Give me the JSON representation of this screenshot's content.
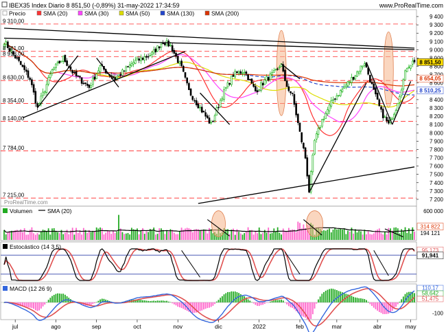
{
  "header": {
    "title": "IBEX35 Index Diario 8 851,50 (-0,89%) 31-may-2022 17:34:59",
    "site": "www.ProRealTime.com",
    "watermark": "ProRealTime.com"
  },
  "colors": {
    "sma20": "#ff3333",
    "sma30": "#ff44ff",
    "sma50": "#dddd00",
    "sma130": "#2244cc",
    "sma200": "#dd3300",
    "up": "#00aa00",
    "down": "#000000",
    "grid": "#ff0000",
    "trend": "#000000",
    "stoch_k": "#000000",
    "stoch_d": "#e05050",
    "macd": "#3366dd",
    "macd_signal": "#e05050",
    "hist_pos": "#22aa22",
    "hist_neg": "#ff66cc"
  },
  "chart_data": [
    {
      "type": "candlestick",
      "panel": "price",
      "legend": [
        {
          "label": "Precio",
          "color": "#ffffff"
        },
        {
          "label": "SMA (20)",
          "color": "#ff3333"
        },
        {
          "label": "SMA (30)",
          "color": "#ff44ff"
        },
        {
          "label": "SMA (50)",
          "color": "#dddd00"
        },
        {
          "label": "SMA (130)",
          "color": "#2244cc"
        },
        {
          "label": "SMA (200)",
          "color": "#dd3300"
        }
      ],
      "ylim": [
        7150,
        9450
      ],
      "y_ticks": [
        "9 400",
        "9 300",
        "9 200",
        "9 100",
        "9 000",
        "8 900",
        "8 800",
        "8 700",
        "8 600",
        "8 500",
        "8 400",
        "8 300",
        "8 200",
        "8 100",
        "8 000",
        "7 900",
        "7 800",
        "7 700",
        "7 600",
        "7 500",
        "7 400",
        "7 300",
        "7 200"
      ],
      "level_labels": [
        "9 310,00",
        "8 981,00",
        "8 918,00",
        "8 630,00",
        "8 354,00",
        "8 140,00",
        "7 784,00",
        "7 215,00"
      ],
      "level_values": [
        9310,
        8981,
        8918,
        8630,
        8354,
        8140,
        7784,
        7215
      ],
      "price_tags": [
        {
          "label": "8 851,50",
          "value": 8851.5,
          "bg": "#ffdd00"
        },
        {
          "label": "8 654,05",
          "value": 8654,
          "bg": "#ffffff",
          "fg": "#dd3300"
        },
        {
          "label": "8 510,25",
          "value": 8510,
          "bg": "#ffffff",
          "fg": "#2244cc"
        }
      ],
      "anchors": [
        [
          0,
          9100
        ],
        [
          8,
          8850
        ],
        [
          14,
          8650
        ],
        [
          18,
          8300
        ],
        [
          26,
          8750
        ],
        [
          32,
          8900
        ],
        [
          38,
          8700
        ],
        [
          46,
          8550
        ],
        [
          52,
          8800
        ],
        [
          60,
          8650
        ],
        [
          70,
          8850
        ],
        [
          80,
          8950
        ],
        [
          86,
          9100
        ],
        [
          90,
          9050
        ],
        [
          96,
          8780
        ],
        [
          100,
          8500
        ],
        [
          106,
          8300
        ],
        [
          112,
          8100
        ],
        [
          118,
          8450
        ],
        [
          124,
          8700
        ],
        [
          130,
          8750
        ],
        [
          136,
          8500
        ],
        [
          142,
          8650
        ],
        [
          148,
          8750
        ],
        [
          150,
          8850
        ],
        [
          152,
          8600
        ],
        [
          156,
          8450
        ],
        [
          160,
          8000
        ],
        [
          163,
          7700
        ],
        [
          165,
          7300
        ],
        [
          168,
          7900
        ],
        [
          172,
          8150
        ],
        [
          178,
          8400
        ],
        [
          184,
          8550
        ],
        [
          190,
          8700
        ],
        [
          195,
          8850
        ],
        [
          200,
          8500
        ],
        [
          204,
          8250
        ],
        [
          208,
          8100
        ],
        [
          212,
          8300
        ],
        [
          218,
          8800
        ],
        [
          221,
          8851
        ]
      ],
      "x_labels": [
        {
          "label": "jul",
          "index": 6
        },
        {
          "label": "ago",
          "index": 28
        },
        {
          "label": "sep",
          "index": 50
        },
        {
          "label": "oct",
          "index": 72
        },
        {
          "label": "nov",
          "index": 94
        },
        {
          "label": "dic",
          "index": 116
        },
        {
          "label": "2022",
          "index": 138
        },
        {
          "label": "feb",
          "index": 160
        },
        {
          "label": "mar",
          "index": 180
        },
        {
          "label": "abr",
          "index": 202
        },
        {
          "label": "may",
          "index": 222
        }
      ]
    },
    {
      "type": "bar",
      "panel": "volume",
      "title": "Volumen",
      "legend": [
        {
          "label": "SMA (20)",
          "color": "#000000"
        }
      ],
      "ylim": [
        0,
        600000
      ],
      "y_ticks": [
        "600 000"
      ],
      "tags": [
        {
          "label": "314 822",
          "value": 314822
        },
        {
          "label": "194 121",
          "value": 194121
        }
      ]
    },
    {
      "type": "line",
      "panel": "stochastic",
      "title": "Estocástico (14 3 5)",
      "ylim": [
        0,
        100
      ],
      "levels": [
        80,
        20
      ],
      "tags": [
        {
          "label": "95,173",
          "value": 95.173
        },
        {
          "label": "91,941",
          "value": 91.941
        }
      ]
    },
    {
      "type": "line",
      "panel": "macd",
      "title": "MACD (12 26 9)",
      "ylim": [
        -150,
        130
      ],
      "y_ticks": [
        "-100"
      ],
      "tags": [
        {
          "label": "110,17",
          "value": 110.17
        },
        {
          "label": "58,642",
          "value": 58.642
        },
        {
          "label": "51,475",
          "value": 51.475
        }
      ]
    }
  ]
}
